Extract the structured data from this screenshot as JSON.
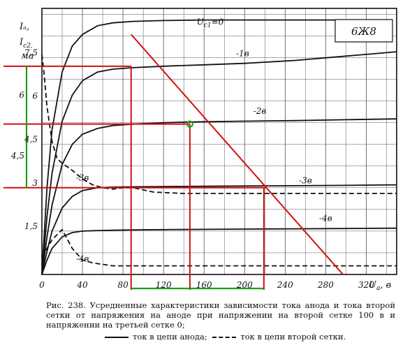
{
  "chart_data": {
    "type": "line",
    "tube": "6Ж8",
    "ylabel_lines": [
      "I",
      "I",
      "ма"
    ],
    "ylabel_subs": [
      "a",
      "c2"
    ],
    "xlabel": "U",
    "xlabel_sub": "a",
    "xlabel_unit": "в",
    "xlim": [
      0,
      350
    ],
    "ylim": [
      0,
      9.2
    ],
    "x_ticks": [
      0,
      40,
      80,
      120,
      160,
      200,
      240,
      280,
      320
    ],
    "y_ticks": [
      1.5,
      3,
      4.5,
      6,
      7.5
    ],
    "y_tick_labels": [
      "1,5",
      "3",
      "4,5",
      "6",
      "7,5"
    ],
    "grid": true,
    "series": [
      {
        "name": "U",
        "sub": "c1",
        "label_suffix": "=0",
        "style": "solid",
        "x": [
          0,
          5,
          10,
          20,
          30,
          40,
          55,
          70,
          90,
          120,
          160,
          200,
          250,
          300,
          305
        ],
        "y": [
          0,
          3.0,
          5.0,
          7.0,
          7.9,
          8.3,
          8.6,
          8.7,
          8.75,
          8.78,
          8.8,
          8.8,
          8.8,
          8.8,
          8.8
        ]
      },
      {
        "name": "-1в",
        "style": "solid",
        "x": [
          0,
          5,
          10,
          20,
          30,
          40,
          55,
          70,
          90,
          120,
          160,
          200,
          250,
          300,
          350
        ],
        "y": [
          0,
          2.0,
          3.5,
          5.3,
          6.2,
          6.7,
          7.0,
          7.1,
          7.15,
          7.2,
          7.25,
          7.3,
          7.4,
          7.55,
          7.7
        ]
      },
      {
        "name": "-2в",
        "style": "solid",
        "x": [
          0,
          5,
          10,
          20,
          30,
          40,
          55,
          70,
          90,
          120,
          160,
          200,
          250,
          300,
          350
        ],
        "y": [
          0,
          1.3,
          2.4,
          3.8,
          4.5,
          4.85,
          5.05,
          5.15,
          5.2,
          5.25,
          5.28,
          5.3,
          5.32,
          5.35,
          5.38
        ]
      },
      {
        "name": "-3в",
        "style": "solid",
        "x": [
          0,
          5,
          10,
          20,
          30,
          40,
          55,
          70,
          90,
          120,
          160,
          200,
          250,
          300,
          350
        ],
        "y": [
          0,
          0.8,
          1.5,
          2.3,
          2.7,
          2.9,
          3.0,
          3.02,
          3.03,
          3.04,
          3.05,
          3.06,
          3.07,
          3.08,
          3.1
        ]
      },
      {
        "name": "-4в",
        "style": "solid",
        "x": [
          0,
          5,
          10,
          20,
          30,
          40,
          55,
          70,
          90,
          120,
          160,
          200,
          250,
          300,
          350
        ],
        "y": [
          0,
          0.5,
          0.9,
          1.3,
          1.45,
          1.5,
          1.52,
          1.53,
          1.54,
          1.55,
          1.56,
          1.57,
          1.58,
          1.59,
          1.6
        ]
      },
      {
        "name": "-2в (ток второй сетки)",
        "style": "dashed",
        "x": [
          0,
          2,
          5,
          10,
          15,
          20,
          30,
          40,
          50,
          60,
          70,
          80,
          90,
          110,
          140,
          200,
          260,
          350
        ],
        "y": [
          7.6,
          7.0,
          5.8,
          4.6,
          4.0,
          3.85,
          3.6,
          3.3,
          3.1,
          3.0,
          2.95,
          3.0,
          3.0,
          2.85,
          2.8,
          2.8,
          2.8,
          2.8
        ]
      },
      {
        "name": "-4в (ток второй сетки)",
        "style": "dashed",
        "x": [
          0,
          10,
          20,
          30,
          40,
          50,
          60,
          70,
          80,
          100,
          150,
          200,
          260,
          350
        ],
        "y": [
          0.6,
          1.2,
          1.55,
          0.9,
          0.5,
          0.4,
          0.35,
          0.3,
          0.3,
          0.3,
          0.3,
          0.3,
          0.3,
          0.3
        ]
      }
    ],
    "curve_labels": [
      {
        "text": "-1в",
        "x": 198,
        "y": 7.55
      },
      {
        "text": "-2в",
        "x": 215,
        "y": 5.55
      },
      {
        "text": "-3в",
        "x": 40,
        "y": 3.25
      },
      {
        "text": "-3в",
        "x": 260,
        "y": 3.15
      },
      {
        "text": "-4в",
        "x": 280,
        "y": 1.85
      },
      {
        "text": "-4в",
        "x": 40,
        "y": 0.45
      }
    ],
    "annotations": {
      "load_line": {
        "x": [
          88,
          297
        ],
        "y": [
          8.3,
          0
        ]
      },
      "operating_point": {
        "x": 146,
        "y": 5.2
      },
      "red_h_lines": [
        {
          "y": 7.2,
          "x": [
            0,
            88
          ]
        },
        {
          "y": 5.2,
          "x": [
            0,
            146
          ]
        },
        {
          "y": 3.0,
          "x": [
            0,
            222
          ]
        }
      ],
      "red_v_lines": [
        {
          "x": 88,
          "y": [
            0,
            7.2
          ]
        },
        {
          "x": 146,
          "y": [
            0,
            5.2
          ]
        },
        {
          "x": 219,
          "y": [
            0,
            3.0
          ]
        }
      ],
      "green_v_spans": [
        {
          "x": -20,
          "y": [
            5.2,
            7.2
          ],
          "label": "6"
        },
        {
          "x": -20,
          "y": [
            3.0,
            5.2
          ],
          "label": "4,5"
        }
      ],
      "green_h_spans": [
        {
          "y": -0.9,
          "x": [
            88,
            146
          ],
          "label": "120"
        },
        {
          "y": -0.9,
          "x": [
            146,
            219
          ],
          "label": "160"
        }
      ]
    }
  },
  "caption": "Рис. 238. Усредненные характеристики зависимости тока анода и тока второй сетки от напряжения на аноде при напряжении на второй сетке 100 в и напряжении на третьей сетке 0;",
  "legend": {
    "solid": "ток в цепи анода;",
    "dashed": "ток в цепи второй сетки."
  }
}
